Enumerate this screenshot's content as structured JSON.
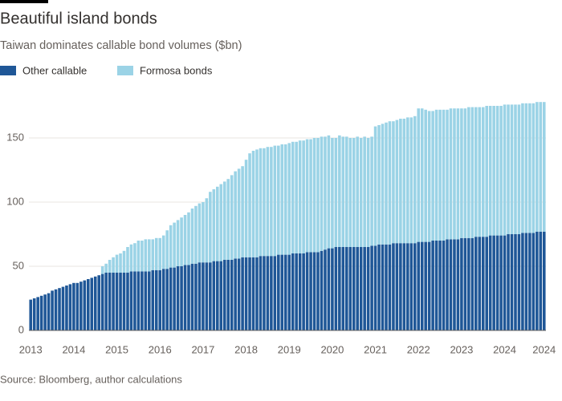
{
  "chart_data": {
    "type": "stacked_bar",
    "title": "Beautiful island bonds",
    "subtitle": "Taiwan dominates callable bond volumes ($bn)",
    "source": "Source: Bloomberg, author calculations",
    "categories": [
      "2013",
      null,
      null,
      null,
      null,
      null,
      null,
      null,
      null,
      null,
      null,
      null,
      "2014",
      null,
      null,
      null,
      null,
      null,
      null,
      null,
      null,
      null,
      null,
      null,
      "2015",
      null,
      null,
      null,
      null,
      null,
      null,
      null,
      null,
      null,
      null,
      null,
      "2016",
      null,
      null,
      null,
      null,
      null,
      null,
      null,
      null,
      null,
      null,
      null,
      "2017",
      null,
      null,
      null,
      null,
      null,
      null,
      null,
      null,
      null,
      null,
      null,
      "2018",
      null,
      null,
      null,
      null,
      null,
      null,
      null,
      null,
      null,
      null,
      null,
      "2019",
      null,
      null,
      null,
      null,
      null,
      null,
      null,
      null,
      null,
      null,
      null,
      "2020",
      null,
      null,
      null,
      null,
      null,
      null,
      null,
      null,
      null,
      null,
      null,
      "2021",
      null,
      null,
      null,
      null,
      null,
      null,
      null,
      null,
      null,
      null,
      null,
      "2022",
      null,
      null,
      null,
      null,
      null,
      null,
      null,
      null,
      null,
      null,
      null,
      "2023",
      null,
      null,
      null,
      null,
      null,
      null,
      null,
      null,
      null,
      null,
      null,
      "2024",
      null,
      null,
      null,
      null,
      null,
      null,
      null,
      null,
      null,
      null,
      "2024"
    ],
    "series": [
      {
        "name": "Other callable",
        "color": "#1f5797",
        "values": [
          24,
          25,
          26,
          27,
          28,
          29,
          31,
          32,
          33,
          34,
          35,
          36,
          37,
          37,
          38,
          39,
          40,
          41,
          42,
          43,
          44,
          45,
          45,
          45,
          45,
          45,
          45,
          45,
          46,
          46,
          46,
          46,
          46,
          46,
          47,
          47,
          47,
          48,
          48,
          49,
          49,
          50,
          50,
          51,
          51,
          52,
          52,
          53,
          53,
          53,
          53,
          54,
          54,
          54,
          55,
          55,
          55,
          56,
          56,
          57,
          57,
          57,
          57,
          57,
          58,
          58,
          58,
          58,
          58,
          59,
          59,
          59,
          59,
          60,
          60,
          60,
          60,
          61,
          61,
          61,
          61,
          62,
          63,
          64,
          64,
          65,
          65,
          65,
          65,
          65,
          65,
          65,
          65,
          65,
          65,
          66,
          66,
          67,
          67,
          67,
          67,
          68,
          68,
          68,
          68,
          68,
          68,
          68,
          69,
          69,
          69,
          69,
          70,
          70,
          70,
          70,
          71,
          71,
          71,
          71,
          72,
          72,
          72,
          72,
          73,
          73,
          73,
          73,
          74,
          74,
          74,
          74,
          74,
          75,
          75,
          75,
          75,
          76,
          76,
          76,
          76,
          77,
          77,
          77
        ]
      },
      {
        "name": "Formosa bonds",
        "color": "#9bd3e6",
        "values": [
          0,
          0,
          0,
          0,
          0,
          0,
          0,
          0,
          0,
          0,
          0,
          0,
          0,
          0,
          0,
          0,
          0,
          0,
          0,
          0,
          6,
          7,
          10,
          12,
          14,
          15,
          17,
          20,
          21,
          22,
          24,
          24,
          25,
          25,
          24,
          25,
          25,
          26,
          30,
          33,
          35,
          36,
          38,
          39,
          41,
          43,
          45,
          46,
          47,
          50,
          55,
          56,
          58,
          60,
          61,
          63,
          66,
          68,
          70,
          71,
          76,
          81,
          83,
          84,
          84,
          84,
          85,
          85,
          86,
          85,
          86,
          86,
          87,
          87,
          87,
          88,
          88,
          88,
          88,
          89,
          89,
          89,
          88,
          88,
          86,
          85,
          87,
          86,
          86,
          85,
          85,
          86,
          85,
          86,
          85,
          85,
          93,
          93,
          94,
          95,
          96,
          95,
          96,
          97,
          97,
          98,
          98,
          99,
          104,
          104,
          103,
          102,
          101,
          102,
          102,
          102,
          101,
          102,
          102,
          102,
          101,
          101,
          102,
          102,
          101,
          101,
          101,
          102,
          101,
          101,
          101,
          101,
          102,
          101,
          101,
          101,
          101,
          101,
          101,
          101,
          101,
          101,
          101,
          101
        ]
      }
    ],
    "ylim": [
      0,
      180
    ],
    "yticks": [
      0,
      50,
      100,
      150
    ],
    "grid": true
  }
}
